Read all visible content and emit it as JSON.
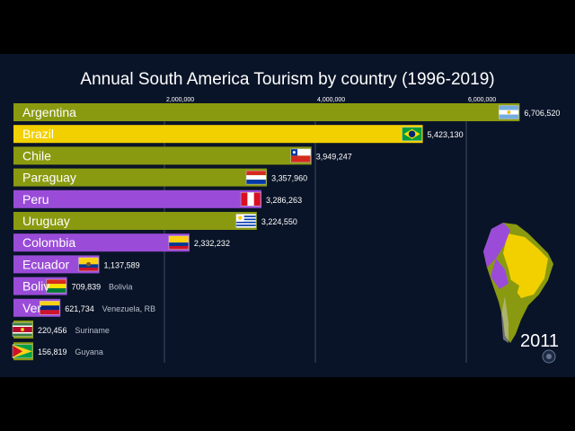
{
  "chart_data": {
    "type": "bar",
    "orientation": "horizontal",
    "title": "Annual South America Tourism by country (1996-2019)",
    "year_label": "2011",
    "x_ticks": [
      {
        "value": 2000000,
        "label": "2,000,000"
      },
      {
        "value": 4000000,
        "label": "4,000,000"
      },
      {
        "value": 6000000,
        "label": "6,000,000"
      }
    ],
    "xlim": [
      0,
      7000000
    ],
    "grid": true,
    "bars": [
      {
        "name": "Argentina",
        "label": "Argentina",
        "value": 6706520,
        "value_label": "6,706,520",
        "color": "#8a9a10",
        "flag": "argentina"
      },
      {
        "name": "Brazil",
        "label": "Brazil",
        "value": 5423130,
        "value_label": "5,423,130",
        "color": "#f2d000",
        "flag": "brazil"
      },
      {
        "name": "Chile",
        "label": "Chile",
        "value": 3949247,
        "value_label": "3,949,247",
        "color": "#8a9a10",
        "flag": "chile"
      },
      {
        "name": "Paraguay",
        "label": "Paraguay",
        "value": 3357960,
        "value_label": "3,357,960",
        "color": "#8a9a10",
        "flag": "paraguay"
      },
      {
        "name": "Peru",
        "label": "Peru",
        "value": 3286263,
        "value_label": "3,286,263",
        "color": "#9a4cd8",
        "flag": "peru"
      },
      {
        "name": "Uruguay",
        "label": "Uruguay",
        "value": 3224550,
        "value_label": "3,224,550",
        "color": "#8a9a10",
        "flag": "uruguay"
      },
      {
        "name": "Colombia",
        "label": "Colombia",
        "value": 2332232,
        "value_label": "2,332,232",
        "color": "#9a4cd8",
        "flag": "colombia"
      },
      {
        "name": "Ecuador",
        "label": "Ecuador",
        "value": 1137589,
        "value_label": "1,137,589",
        "color": "#9a4cd8",
        "flag": "ecuador"
      },
      {
        "name": "Bolivia",
        "label": "Boliv",
        "value": 709839,
        "value_label": "709,839",
        "side_label": "Bolivia",
        "color": "#9a4cd8",
        "flag": "bolivia"
      },
      {
        "name": "Venezuela, RB",
        "label": "Ver",
        "value": 621734,
        "value_label": "621,734",
        "side_label": "Venezuela, RB",
        "color": "#9a4cd8",
        "flag": "venezuela"
      },
      {
        "name": "Suriname",
        "label": "",
        "value": 220456,
        "value_label": "220,456",
        "side_label": "Suriname",
        "color": "#8a9a10",
        "flag": "suriname"
      },
      {
        "name": "Guyana",
        "label": "",
        "value": 156819,
        "value_label": "156,819",
        "side_label": "Guyana",
        "color": "#8a9a10",
        "flag": "guyana"
      }
    ]
  },
  "colors": {
    "background": "#0a1428",
    "title": "#ffffff",
    "grid": "#3a4a66",
    "map_yellow": "#f2d000",
    "map_purple": "#9a4cd8",
    "map_olive": "#8a9a10"
  },
  "icons": [
    "south-america-map-icon",
    "logo-icon"
  ]
}
